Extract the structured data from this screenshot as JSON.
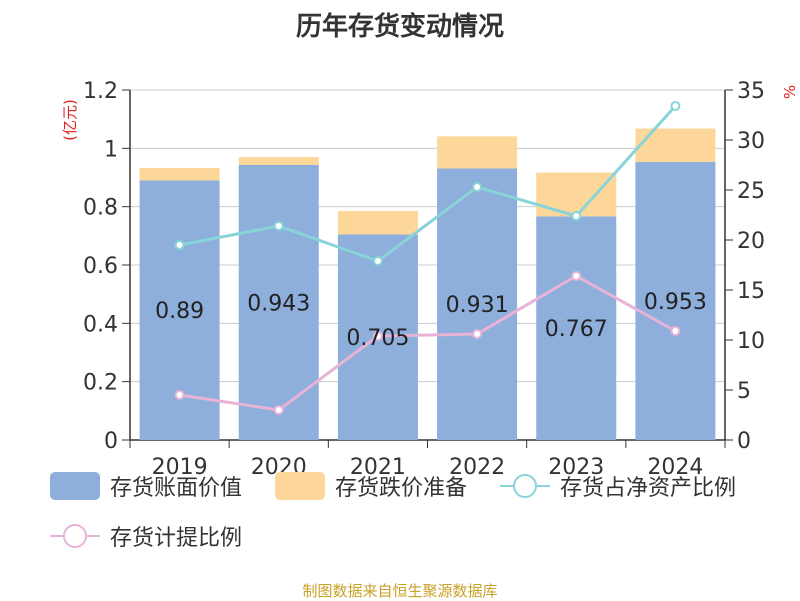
{
  "chart_data": {
    "type": "bar",
    "title": "历年存货变动情况",
    "categories": [
      "2019",
      "2020",
      "2021",
      "2022",
      "2023",
      "2024"
    ],
    "left_axis": {
      "unit_label": "(亿元)",
      "ylim": [
        0,
        1.2
      ],
      "ticks": [
        "0",
        "0.2",
        "0.4",
        "0.6",
        "0.8",
        "1",
        "1.2"
      ]
    },
    "right_axis": {
      "unit_label": "%",
      "ylim": [
        0,
        35
      ],
      "ticks": [
        "0",
        "5",
        "10",
        "15",
        "20",
        "25",
        "30",
        "35"
      ]
    },
    "series": [
      {
        "name": "存货账面价值",
        "kind": "bar",
        "stack": "total",
        "axis": "left",
        "color": "#8eaedc",
        "values": [
          0.89,
          0.943,
          0.705,
          0.931,
          0.767,
          0.953
        ],
        "labels": [
          "0.89",
          "0.943",
          "0.705",
          "0.931",
          "0.767",
          "0.953"
        ]
      },
      {
        "name": "存货跌价准备",
        "kind": "bar",
        "stack": "total",
        "axis": "left",
        "color": "#fdd699",
        "values": [
          0.043,
          0.027,
          0.08,
          0.11,
          0.15,
          0.115
        ]
      },
      {
        "name": "存货占净资产比例",
        "kind": "line",
        "axis": "right",
        "color": "#88d4d8",
        "values": [
          19.5,
          21.4,
          17.9,
          25.3,
          22.4,
          33.4
        ]
      },
      {
        "name": "存货计提比例",
        "kind": "line",
        "axis": "right",
        "color": "#e8b3d6",
        "values": [
          4.5,
          3.0,
          10.4,
          10.6,
          16.4,
          10.9
        ]
      }
    ],
    "grid": true,
    "legend_position": "bottom"
  },
  "source_note": "制图数据来自恒生聚源数据库"
}
